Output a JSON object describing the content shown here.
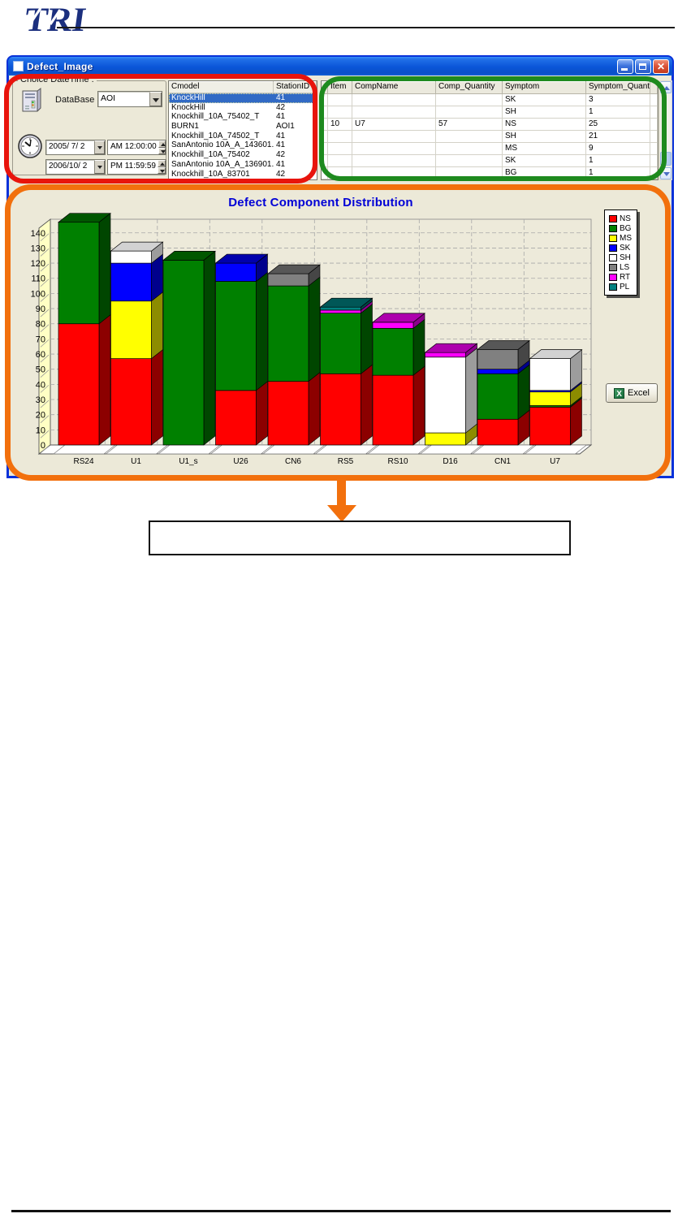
{
  "logo": {
    "text": "TRI"
  },
  "window": {
    "title": "Defect_Image"
  },
  "icons": {
    "app_icon": "white-square",
    "database_icon": "server-tower",
    "clock_icon": "analog-clock",
    "dropdown_arrow": "▼",
    "spin_up": "▲",
    "spin_down": "▼",
    "scroll_up": "∧",
    "scroll_down": "∨",
    "minimize": "—",
    "maximize": "□",
    "close": "✕",
    "excel_icon": "green-x"
  },
  "panel": {
    "group_label": "Choice DateTime :",
    "database_label": "DataBase :",
    "database_value": "AOI",
    "date_from": "2005/ 7/ 2",
    "time_from": "AM 12:00:00",
    "date_to": "2006/10/ 2",
    "time_to": "PM 11:59:59"
  },
  "model_list": {
    "columns": [
      "Cmodel",
      "StationID"
    ],
    "selected_index": 0,
    "rows": [
      [
        "KnockHill",
        "41"
      ],
      [
        "KnockHill",
        "42"
      ],
      [
        "Knockhill_10A_75402_T",
        "41"
      ],
      [
        "BURN1",
        "AOI1"
      ],
      [
        "Knockhill_10A_74502_T",
        "41"
      ],
      [
        "SanAntonio 10A_A_143601...",
        "41"
      ],
      [
        "Knockhill_10A_75402",
        "42"
      ],
      [
        "SanAntonio 10A_A_136901...",
        "41"
      ],
      [
        "Knockhill_10A_83701",
        "42"
      ]
    ]
  },
  "symptom_table": {
    "columns": [
      "Item",
      "CompName",
      "Comp_Quantity",
      "Symptom",
      "Symptom_Quantity"
    ],
    "rows": [
      [
        "",
        "",
        "",
        "SK",
        "3"
      ],
      [
        "",
        "",
        "",
        "SH",
        "1"
      ],
      [
        "10",
        "U7",
        "57",
        "NS",
        "25"
      ],
      [
        "",
        "",
        "",
        "SH",
        "21"
      ],
      [
        "",
        "",
        "",
        "MS",
        "9"
      ],
      [
        "",
        "",
        "",
        "SK",
        "1"
      ],
      [
        "",
        "",
        "",
        "BG",
        "1"
      ]
    ]
  },
  "chart_data": {
    "type": "bar",
    "stacked": true,
    "projection": "3d",
    "title": "Defect Component Distribution",
    "categories": [
      "RS24",
      "U1",
      "U1_s",
      "U26",
      "CN6",
      "RS5",
      "RS10",
      "D16",
      "CN1",
      "U7"
    ],
    "series": [
      {
        "name": "NS",
        "color": "#FF0000",
        "values": [
          80,
          57,
          0,
          36,
          42,
          47,
          46,
          0,
          17,
          25
        ]
      },
      {
        "name": "BG",
        "color": "#008000",
        "values": [
          67,
          0,
          122,
          72,
          63,
          40,
          31,
          0,
          30,
          1
        ]
      },
      {
        "name": "MS",
        "color": "#FFFF00",
        "values": [
          0,
          38,
          0,
          0,
          0,
          0,
          0,
          8,
          0,
          9
        ]
      },
      {
        "name": "SK",
        "color": "#0000FF",
        "values": [
          0,
          25,
          0,
          12,
          0,
          0,
          0,
          0,
          3,
          1
        ]
      },
      {
        "name": "SH",
        "color": "#FFFFFF",
        "values": [
          0,
          8,
          0,
          0,
          0,
          0,
          0,
          50,
          0,
          21
        ]
      },
      {
        "name": "LS",
        "color": "#808080",
        "values": [
          0,
          0,
          0,
          0,
          8,
          0,
          0,
          0,
          13,
          0
        ]
      },
      {
        "name": "RT",
        "color": "#FF00FF",
        "values": [
          0,
          0,
          0,
          0,
          0,
          2,
          4,
          3,
          0,
          0
        ]
      },
      {
        "name": "PL",
        "color": "#008080",
        "values": [
          0,
          0,
          0,
          0,
          0,
          2,
          0,
          0,
          0,
          0
        ]
      }
    ],
    "ylim": [
      0,
      149
    ],
    "ytick_step": 10,
    "grid": "dashed",
    "legend_position": "right"
  },
  "excel_button": {
    "label": "Excel"
  },
  "colors": {
    "annotation_red": "#E8140C",
    "annotation_green": "#1E8A1E",
    "annotation_orange": "#F2700D",
    "selection_blue": "#316AC5",
    "title_blue": "#0000D6",
    "titlebar_blue": "#0A55D8",
    "window_bg": "#ECE9D8",
    "chart_wall_yellow": "#FFFFC4"
  }
}
